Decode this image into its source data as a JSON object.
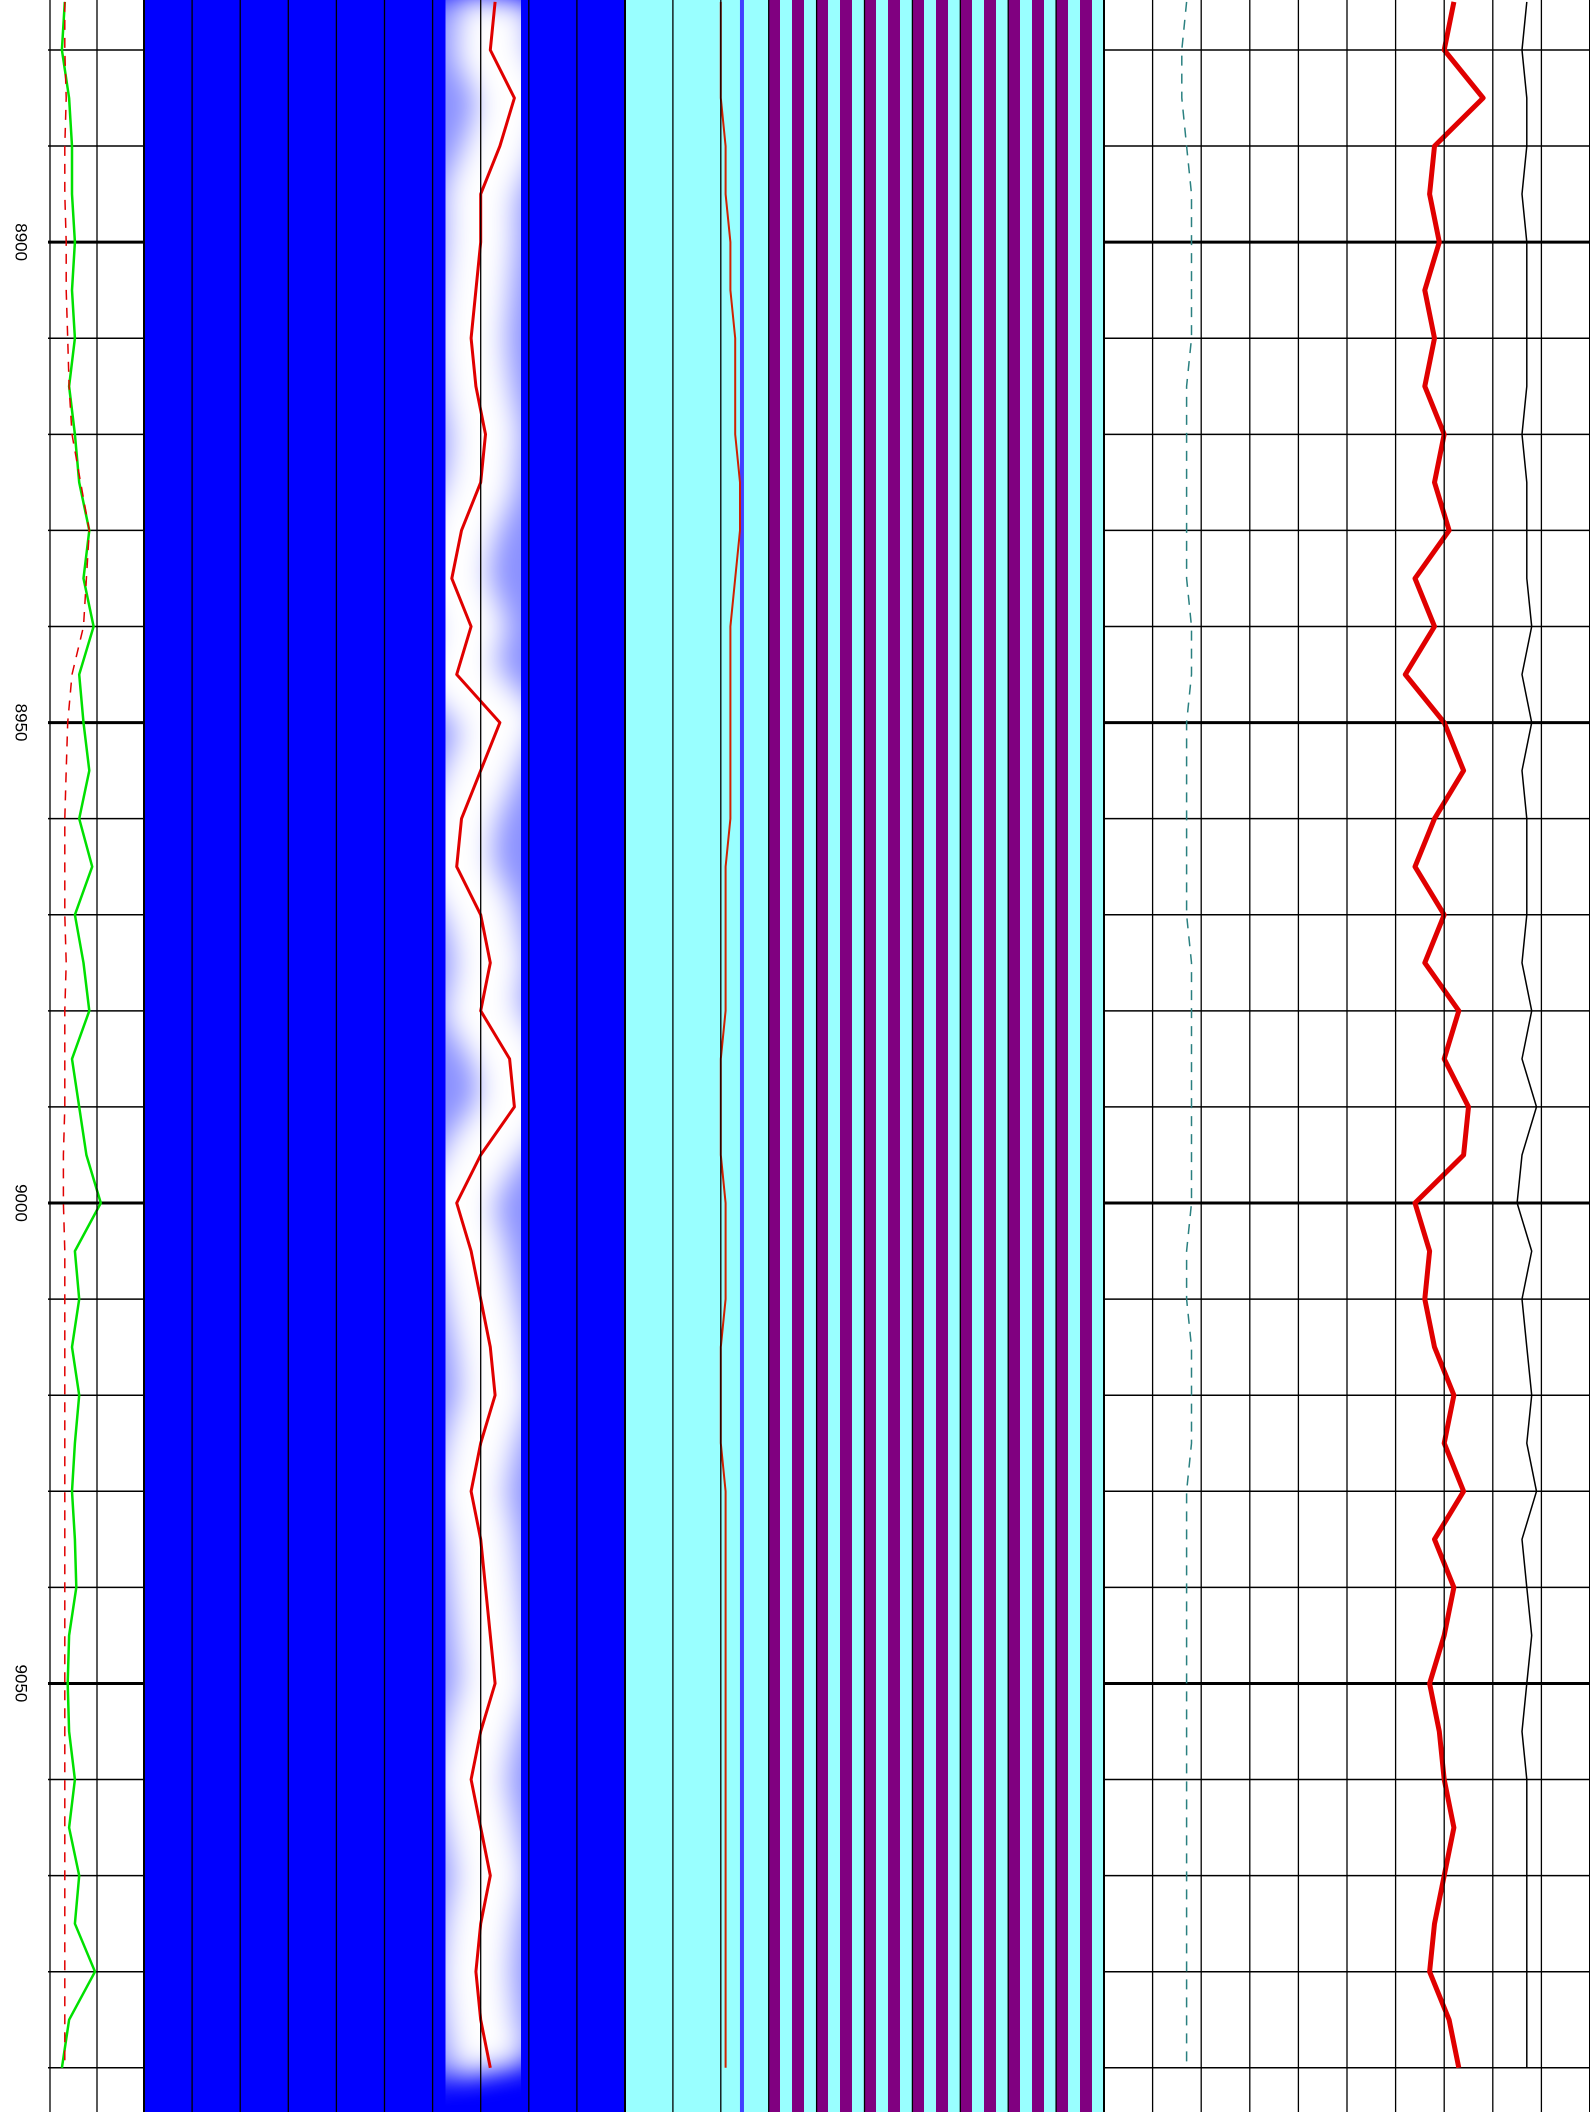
{
  "chart_data": {
    "type": "well_log",
    "ylim": [
      8874.8,
      9094.6
    ],
    "yticks": [
      8900,
      8950,
      9000,
      9050
    ],
    "minor_yticks": [
      8880,
      8890,
      8910,
      8920,
      8930,
      8940,
      8960,
      8970,
      8980,
      8990,
      9010,
      9020,
      9030,
      9040,
      9060,
      9070,
      9080,
      9090
    ],
    "depth": [
      8875,
      8880,
      8885,
      8890,
      8895,
      8900,
      8905,
      8910,
      8915,
      8920,
      8925,
      8930,
      8935,
      8940,
      8945,
      8950,
      8955,
      8960,
      8965,
      8970,
      8975,
      8980,
      8985,
      8990,
      8995,
      9000,
      9005,
      9010,
      9015,
      9020,
      9025,
      9030,
      9035,
      9040,
      9045,
      9050,
      9055,
      9060,
      9065,
      9070,
      9075,
      9080,
      9085,
      9090
    ],
    "tracks": [
      {
        "xlim": [
          0,
          100
        ],
        "background": "#ffffff",
        "curves": [
          {
            "color": "#00e000",
            "line_width": 2.5,
            "values": [
              45,
              43,
              48,
              50,
              50,
              52,
              50,
              52,
              48,
              52,
              55,
              62,
              58,
              65,
              55,
              58,
              62,
              55,
              64,
              52,
              58,
              62,
              50,
              55,
              60,
              70,
              52,
              55,
              50,
              55,
              52,
              50,
              52,
              53,
              48,
              47,
              48,
              52,
              48,
              55,
              52,
              66,
              48,
              43
            ]
          },
          {
            "color": "#e00000",
            "line_width": 1.5,
            "dashed": true,
            "values": [
              45,
              45,
              46,
              45,
              45,
              46,
              46,
              47,
              48,
              50,
              56,
              62,
              60,
              58,
              50,
              47,
              46,
              45,
              45,
              45,
              46,
              45,
              45,
              45,
              44,
              44,
              45,
              45,
              45,
              45,
              45,
              45,
              45,
              45,
              45,
              45,
              45,
              45,
              45,
              45,
              45,
              45,
              45,
              45
            ]
          }
        ]
      },
      {
        "xlim": [
          0,
          100
        ],
        "background": "#0000ff",
        "curves": [
          {
            "color": "#e00000",
            "line_width": 3,
            "band": true,
            "values": [
              73,
              72,
              77,
              74,
              70,
              70,
              69,
              68,
              69,
              71,
              70,
              66,
              64,
              68,
              65,
              74,
              70,
              66,
              65,
              70,
              72,
              70,
              76,
              77,
              70,
              65,
              68,
              70,
              72,
              73,
              70,
              68,
              70,
              71,
              72,
              73,
              70,
              68,
              70,
              72,
              70,
              69,
              70,
              72
            ]
          }
        ]
      },
      {
        "xlim": [
          0,
          100
        ],
        "background": "#99ffff",
        "stripes": true,
        "curves": [
          {
            "color": "#d02000",
            "line_width": 2,
            "values": [
              20,
              20,
              20,
              21,
              21,
              22,
              22,
              23,
              23,
              23,
              24,
              24,
              23,
              22,
              22,
              22,
              22,
              22,
              21,
              21,
              21,
              21,
              20,
              20,
              20,
              21,
              21,
              21,
              20,
              20,
              20,
              21,
              21,
              21,
              21,
              21,
              21,
              21,
              21,
              21,
              21,
              21,
              21,
              21
            ]
          }
        ]
      },
      {
        "xlim": [
          0,
          100
        ],
        "background": "#ffffff",
        "curves": [
          {
            "color": "#2a8080",
            "line_width": 1.5,
            "dashed": true,
            "values": [
              17,
              16,
              16,
              17,
              18,
              18,
              18,
              18,
              17,
              17,
              17,
              17,
              17,
              18,
              18,
              17,
              17,
              17,
              17,
              17,
              18,
              18,
              18,
              18,
              18,
              18,
              17,
              17,
              18,
              18,
              18,
              17,
              17,
              17,
              17,
              17,
              17,
              17,
              17,
              17,
              17,
              17,
              17,
              17
            ]
          },
          {
            "color": "#e00000",
            "line_width": 5,
            "values": [
              72,
              70,
              78,
              68,
              67,
              69,
              66,
              68,
              66,
              70,
              68,
              71,
              64,
              68,
              62,
              70,
              74,
              68,
              64,
              70,
              66,
              73,
              70,
              75,
              74,
              64,
              67,
              66,
              68,
              72,
              70,
              74,
              68,
              72,
              70,
              67,
              69,
              70,
              72,
              70,
              68,
              67,
              71,
              73
            ]
          },
          {
            "color": "#000000",
            "line_width": 1.5,
            "values": [
              87,
              86,
              87,
              87,
              86,
              87,
              87,
              87,
              87,
              86,
              87,
              87,
              87,
              88,
              86,
              88,
              86,
              87,
              87,
              87,
              86,
              88,
              86,
              89,
              86,
              85,
              88,
              86,
              87,
              88,
              87,
              89,
              86,
              87,
              88,
              87,
              86,
              87,
              87,
              87,
              87,
              87,
              87,
              87
            ]
          }
        ]
      }
    ]
  }
}
